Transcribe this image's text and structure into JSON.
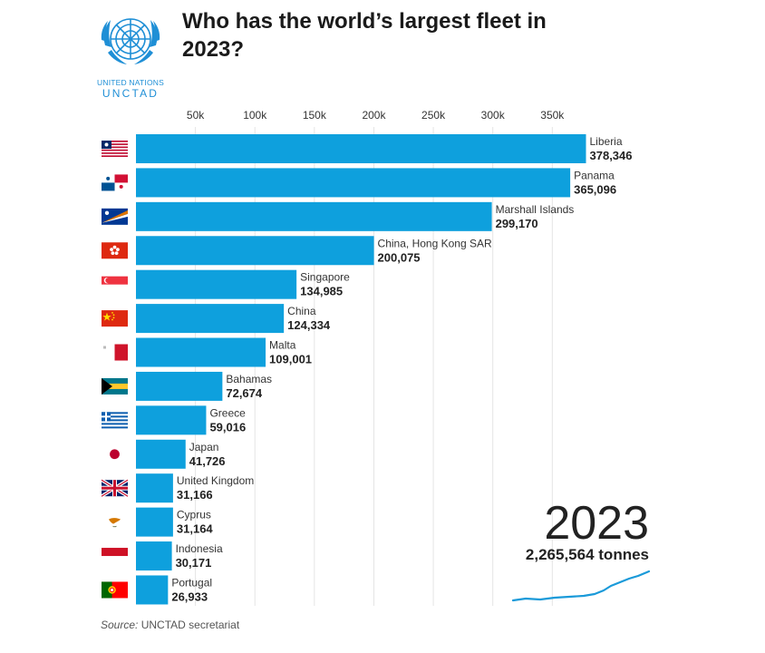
{
  "header": {
    "title": "Who has the world’s largest fleet in 2023?",
    "logo_line1": "UNITED NATIONS",
    "logo_line2": "UNCTAD"
  },
  "footer": {
    "source_label": "Source:",
    "source_text": "UNCTAD secretariat"
  },
  "chart_data": {
    "type": "bar",
    "orientation": "horizontal",
    "bar_color": "#0ea0dd",
    "xlim": [
      0,
      400000
    ],
    "x_ticks": [
      50000,
      100000,
      150000,
      200000,
      250000,
      300000,
      350000
    ],
    "x_tick_labels": [
      "50k",
      "100k",
      "150k",
      "200k",
      "250k",
      "300k",
      "350k"
    ],
    "categories": [
      "Liberia",
      "Panama",
      "Marshall Islands",
      "China, Hong Kong SAR",
      "Singapore",
      "China",
      "Malta",
      "Bahamas",
      "Greece",
      "Japan",
      "United Kingdom",
      "Cyprus",
      "Indonesia",
      "Portugal"
    ],
    "values": [
      378346,
      365096,
      299170,
      200075,
      134985,
      124334,
      109001,
      72674,
      59016,
      41726,
      31166,
      31164,
      30171,
      26933
    ],
    "value_labels": [
      "378,346",
      "365,096",
      "299,170",
      "200,075",
      "134,985",
      "124,334",
      "109,001",
      "72,674",
      "59,016",
      "41,726",
      "31,166",
      "31,164",
      "30,171",
      "26,933"
    ],
    "flag_icons": [
      "flag-liberia-icon",
      "flag-panama-icon",
      "flag-marshall-islands-icon",
      "flag-hong-kong-icon",
      "flag-singapore-icon",
      "flag-china-icon",
      "flag-malta-icon",
      "flag-bahamas-icon",
      "flag-greece-icon",
      "flag-japan-icon",
      "flag-united-kingdom-icon",
      "flag-cyprus-icon",
      "flag-indonesia-icon",
      "flag-portugal-icon"
    ],
    "year": "2023",
    "total": "2,265,564 tonnes",
    "trend_color": "#1a9ad9",
    "grid": true
  }
}
